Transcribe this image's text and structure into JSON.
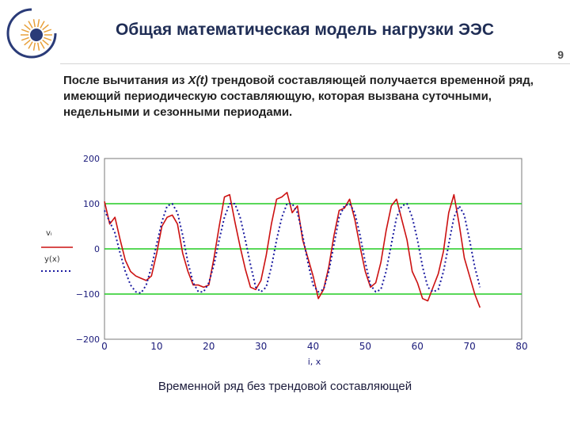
{
  "slide": {
    "title": "Общая математическая модель нагрузки ЭЭС",
    "page_number": "9",
    "paragraph_before": "После вычитания из ",
    "paragraph_italic": "X(t)",
    "paragraph_after": " трендовой составляющей получается временной ряд, имеющий периодическую составляющую, которая вызвана суточными, недельными и сезонными периодами.",
    "caption": "Временной ряд без трендовой составляющей"
  },
  "colors": {
    "title": "#1f2d55",
    "red_series": "#cc1111",
    "blue_series": "#1a1aa0",
    "green_lines": "#22cc22",
    "logo": "#2a3b78"
  },
  "chart_data": {
    "type": "line",
    "xlabel": "i, x",
    "xlim": [
      0,
      80
    ],
    "ylim": [
      -200,
      200
    ],
    "x_ticks": [
      "0",
      "10",
      "20",
      "30",
      "40",
      "50",
      "60",
      "70",
      "80"
    ],
    "y_ticks": [
      "200",
      "100",
      "0",
      "−100",
      "−200"
    ],
    "legend": [
      "vᵢ",
      "y(x)"
    ],
    "horizontal_lines": [
      100,
      0,
      -100
    ],
    "grid": false,
    "series": [
      {
        "name": "vᵢ",
        "style": "solid",
        "x": [
          0,
          1,
          2,
          3,
          4,
          5,
          6,
          7,
          8,
          9,
          10,
          11,
          12,
          13,
          14,
          15,
          16,
          17,
          18,
          19,
          20,
          21,
          22,
          23,
          24,
          25,
          26,
          27,
          28,
          29,
          30,
          31,
          32,
          33,
          34,
          35,
          36,
          37,
          38,
          39,
          40,
          41,
          42,
          43,
          44,
          45,
          46,
          47,
          48,
          49,
          50,
          51,
          52,
          53,
          54,
          55,
          56,
          57,
          58,
          59,
          60,
          61,
          62,
          63,
          64,
          65,
          66,
          67,
          68,
          69,
          70,
          71,
          72
        ],
        "y": [
          105,
          55,
          70,
          20,
          -25,
          -50,
          -60,
          -65,
          -70,
          -60,
          -10,
          50,
          70,
          75,
          55,
          -10,
          -50,
          -80,
          -80,
          -85,
          -80,
          -20,
          50,
          115,
          120,
          60,
          5,
          -45,
          -85,
          -90,
          -70,
          -15,
          55,
          110,
          115,
          125,
          80,
          95,
          20,
          -20,
          -60,
          -110,
          -90,
          -40,
          30,
          85,
          90,
          110,
          65,
          5,
          -50,
          -85,
          -75,
          -30,
          40,
          95,
          110,
          65,
          20,
          -50,
          -75,
          -110,
          -115,
          -85,
          -55,
          -5,
          80,
          120,
          55,
          -20,
          -60,
          -100,
          -130
        ]
      },
      {
        "name": "y(x)",
        "style": "dotted",
        "x": [
          0,
          1,
          2,
          3,
          4,
          5,
          6,
          7,
          8,
          9,
          10,
          11,
          12,
          13,
          14,
          15,
          16,
          17,
          18,
          19,
          20,
          21,
          22,
          23,
          24,
          25,
          26,
          27,
          28,
          29,
          30,
          31,
          32,
          33,
          34,
          35,
          36,
          37,
          38,
          39,
          40,
          41,
          42,
          43,
          44,
          45,
          46,
          47,
          48,
          49,
          50,
          51,
          52,
          53,
          54,
          55,
          56,
          57,
          58,
          59,
          60,
          61,
          62,
          63,
          64,
          65,
          66,
          67,
          68,
          69,
          70,
          71,
          72
        ],
        "y": [
          85,
          60,
          35,
          -10,
          -50,
          -80,
          -95,
          -98,
          -80,
          -40,
          10,
          60,
          95,
          100,
          80,
          30,
          -30,
          -75,
          -95,
          -95,
          -75,
          -35,
          20,
          70,
          100,
          100,
          70,
          20,
          -35,
          -85,
          -95,
          -85,
          -40,
          20,
          70,
          100,
          100,
          80,
          30,
          -30,
          -80,
          -95,
          -90,
          -50,
          10,
          70,
          95,
          100,
          80,
          30,
          -30,
          -80,
          -95,
          -90,
          -50,
          10,
          70,
          95,
          100,
          70,
          20,
          -40,
          -85,
          -95,
          -90,
          -50,
          10,
          70,
          95,
          75,
          20,
          -40,
          -85
        ]
      }
    ]
  }
}
